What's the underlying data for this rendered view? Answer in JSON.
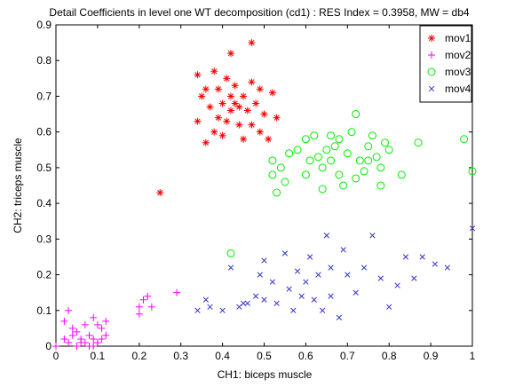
{
  "chart_data": {
    "type": "scatter",
    "title": "Detail Coefficients in level one WT decomposition (cd1) : RES Index = 0.3958, MW = db4",
    "x_label": "CH1: biceps muscle",
    "y_label": "CH2: triceps muscle",
    "xlim": [
      0,
      1
    ],
    "ylim": [
      0,
      0.9
    ],
    "xticks": [
      0,
      0.1,
      0.2,
      0.3,
      0.4,
      0.5,
      0.6,
      0.7,
      0.8,
      0.9,
      1
    ],
    "yticks": [
      0,
      0.1,
      0.2,
      0.3,
      0.4,
      0.5,
      0.6,
      0.7,
      0.8,
      0.9
    ],
    "legend": "upper right",
    "grid": false,
    "series": [
      {
        "name": "mov1",
        "color": "#ff0000",
        "marker": "*",
        "x": [
          0.47,
          0.42,
          0.34,
          0.38,
          0.41,
          0.36,
          0.39,
          0.43,
          0.45,
          0.47,
          0.49,
          0.52,
          0.4,
          0.42,
          0.44,
          0.46,
          0.48,
          0.5,
          0.37,
          0.35,
          0.41,
          0.44,
          0.47,
          0.49,
          0.51,
          0.45,
          0.38,
          0.36,
          0.34,
          0.4,
          0.43,
          0.39,
          0.25,
          0.53,
          0.42
        ],
        "values": [
          0.85,
          0.82,
          0.76,
          0.77,
          0.75,
          0.72,
          0.72,
          0.73,
          0.7,
          0.74,
          0.72,
          0.71,
          0.68,
          0.66,
          0.67,
          0.66,
          0.68,
          0.65,
          0.67,
          0.7,
          0.63,
          0.62,
          0.62,
          0.6,
          0.58,
          0.58,
          0.6,
          0.57,
          0.63,
          0.59,
          0.68,
          0.64,
          0.43,
          0.64,
          0.7
        ]
      },
      {
        "name": "mov2",
        "color": "#ff00ff",
        "marker": "+",
        "x": [
          0.0,
          0.02,
          0.03,
          0.04,
          0.05,
          0.06,
          0.07,
          0.08,
          0.09,
          0.1,
          0.11,
          0.12,
          0.02,
          0.03,
          0.04,
          0.07,
          0.09,
          0.1,
          0.12,
          0.08,
          0.05,
          0.11,
          0.2,
          0.21,
          0.22,
          0.23,
          0.2,
          0.29,
          0.06,
          0.09
        ],
        "values": [
          0.0,
          0.02,
          0.01,
          0.03,
          0.0,
          0.02,
          0.01,
          0.03,
          0.02,
          0.01,
          0.02,
          0.03,
          0.07,
          0.1,
          0.05,
          0.06,
          0.08,
          0.06,
          0.07,
          0.0,
          0.04,
          0.05,
          0.11,
          0.13,
          0.14,
          0.11,
          0.09,
          0.15,
          0.01,
          0.0
        ]
      },
      {
        "name": "mov3",
        "color": "#00ee00",
        "marker": "o",
        "x": [
          0.42,
          0.52,
          0.53,
          0.52,
          0.54,
          0.55,
          0.56,
          0.58,
          0.6,
          0.62,
          0.63,
          0.64,
          0.65,
          0.66,
          0.67,
          0.68,
          0.68,
          0.69,
          0.7,
          0.71,
          0.72,
          0.73,
          0.74,
          0.75,
          0.76,
          0.77,
          0.78,
          0.79,
          0.8,
          0.83,
          0.87,
          0.98,
          1.0,
          0.6,
          0.64,
          0.66,
          0.72,
          0.61,
          0.75,
          0.78
        ],
        "values": [
          0.26,
          0.48,
          0.43,
          0.52,
          0.5,
          0.46,
          0.54,
          0.55,
          0.58,
          0.59,
          0.53,
          0.5,
          0.55,
          0.52,
          0.56,
          0.58,
          0.48,
          0.45,
          0.54,
          0.6,
          0.65,
          0.52,
          0.49,
          0.56,
          0.59,
          0.53,
          0.5,
          0.57,
          0.55,
          0.48,
          0.57,
          0.58,
          0.49,
          0.48,
          0.44,
          0.59,
          0.47,
          0.52,
          0.52,
          0.45
        ]
      },
      {
        "name": "mov4",
        "color": "#3333cc",
        "marker": "x",
        "x": [
          0.34,
          0.36,
          0.37,
          0.4,
          0.42,
          0.44,
          0.46,
          0.48,
          0.5,
          0.49,
          0.5,
          0.52,
          0.53,
          0.55,
          0.56,
          0.58,
          0.59,
          0.6,
          0.61,
          0.62,
          0.63,
          0.64,
          0.65,
          0.66,
          0.66,
          0.68,
          0.69,
          0.7,
          0.72,
          0.74,
          0.76,
          0.78,
          0.8,
          0.82,
          0.84,
          0.86,
          0.88,
          0.91,
          0.94,
          1.0,
          0.57,
          0.45
        ],
        "values": [
          0.1,
          0.13,
          0.11,
          0.1,
          0.22,
          0.11,
          0.12,
          0.14,
          0.13,
          0.2,
          0.24,
          0.18,
          0.12,
          0.26,
          0.16,
          0.21,
          0.14,
          0.18,
          0.25,
          0.13,
          0.2,
          0.1,
          0.31,
          0.22,
          0.14,
          0.08,
          0.27,
          0.2,
          0.15,
          0.22,
          0.31,
          0.19,
          0.11,
          0.17,
          0.25,
          0.19,
          0.25,
          0.23,
          0.22,
          0.33,
          0.1,
          0.12
        ]
      }
    ]
  }
}
